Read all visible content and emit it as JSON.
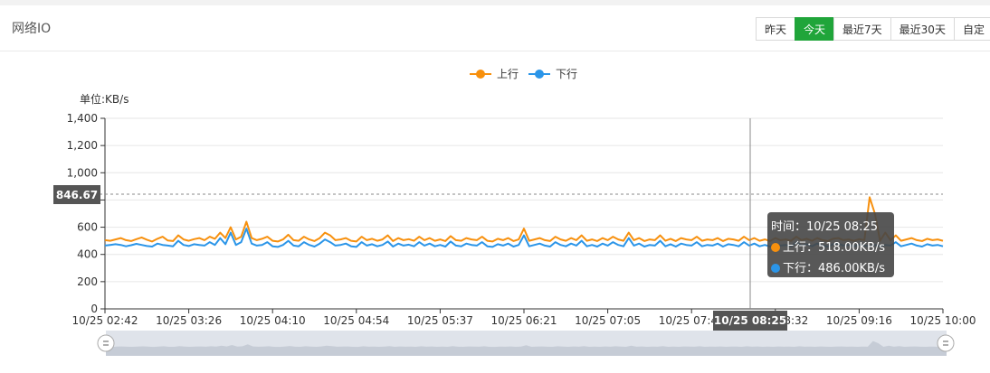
{
  "panel": {
    "title": "网络IO"
  },
  "range_buttons": [
    {
      "label": "昨天",
      "active": false
    },
    {
      "label": "今天",
      "active": true
    },
    {
      "label": "最近7天",
      "active": false
    },
    {
      "label": "最近30天",
      "active": false
    },
    {
      "label": "自定",
      "active": false
    }
  ],
  "colors": {
    "upload": "#f7900e",
    "download": "#2b95e8",
    "active_button": "#20a53a"
  },
  "chart_data": {
    "type": "line",
    "unit_label": "单位:KB/s",
    "legend_position": "top-center",
    "grid": true,
    "ylim": [
      0,
      1400
    ],
    "y_ticks": [
      "0",
      "200",
      "400",
      "600",
      "800",
      "1,000",
      "1,200",
      "1,400"
    ],
    "x_range": [
      "10/25 02:42",
      "10/25 10:00"
    ],
    "x_ticks": [
      "10/25 02:42",
      "10/25 03:26",
      "10/25 04:10",
      "10/25 04:54",
      "10/25 05:37",
      "10/25 06:21",
      "10/25 07:05",
      "10/25 07:49",
      "10/25 08:32",
      "10/25 09:16",
      "10/25 10:00"
    ],
    "series": [
      {
        "name": "上行",
        "color": "#f7900e",
        "values": [
          505,
          500,
          510,
          520,
          505,
          498,
          512,
          525,
          508,
          495,
          515,
          530,
          502,
          498,
          540,
          510,
          500,
          512,
          520,
          505,
          530,
          515,
          560,
          520,
          600,
          510,
          530,
          640,
          520,
          505,
          515,
          530,
          500,
          495,
          510,
          545,
          505,
          500,
          530,
          510,
          498,
          520,
          560,
          540,
          505,
          510,
          520,
          500,
          495,
          530,
          505,
          515,
          500,
          510,
          540,
          498,
          520,
          505,
          512,
          500,
          530,
          505,
          520,
          500,
          510,
          498,
          535,
          505,
          500,
          520,
          510,
          505,
          530,
          500,
          495,
          515,
          505,
          520,
          498,
          510,
          590,
          500,
          510,
          520,
          505,
          498,
          530,
          510,
          500,
          520,
          505,
          540,
          500,
          510,
          498,
          520,
          505,
          530,
          510,
          500,
          560,
          505,
          520,
          498,
          510,
          505,
          540,
          500,
          515,
          498,
          520,
          510,
          505,
          530,
          500,
          510,
          505,
          520,
          498,
          515,
          510,
          500,
          530,
          505,
          520,
          500,
          510,
          498,
          520,
          505,
          510,
          500,
          530,
          505,
          515,
          500,
          520,
          505,
          498,
          515,
          520,
          505,
          510,
          500,
          512,
          505,
          820,
          700,
          500,
          560,
          505,
          540,
          500,
          510,
          520,
          505,
          498,
          515,
          505,
          510,
          500
        ]
      },
      {
        "name": "下行",
        "color": "#2b95e8",
        "values": [
          465,
          470,
          475,
          470,
          460,
          468,
          478,
          470,
          462,
          458,
          480,
          470,
          465,
          460,
          500,
          470,
          462,
          475,
          470,
          465,
          490,
          470,
          520,
          475,
          560,
          470,
          490,
          590,
          480,
          465,
          470,
          490,
          460,
          455,
          470,
          500,
          465,
          460,
          490,
          470,
          458,
          480,
          510,
          490,
          465,
          470,
          480,
          460,
          455,
          490,
          465,
          475,
          460,
          470,
          495,
          458,
          480,
          465,
          472,
          460,
          490,
          465,
          480,
          460,
          470,
          458,
          495,
          465,
          460,
          480,
          470,
          465,
          490,
          460,
          455,
          475,
          465,
          480,
          458,
          470,
          540,
          460,
          470,
          480,
          465,
          458,
          490,
          470,
          460,
          480,
          465,
          500,
          460,
          470,
          458,
          480,
          465,
          490,
          470,
          460,
          520,
          465,
          480,
          458,
          470,
          465,
          500,
          460,
          475,
          458,
          480,
          470,
          465,
          490,
          460,
          470,
          465,
          480,
          458,
          475,
          470,
          460,
          490,
          465,
          480,
          460,
          470,
          458,
          480,
          465,
          470,
          460,
          490,
          465,
          475,
          460,
          480,
          465,
          458,
          475,
          480,
          465,
          470,
          460,
          472,
          465,
          460,
          470,
          460,
          470,
          465,
          490,
          460,
          470,
          480,
          465,
          458,
          475,
          465,
          470,
          460
        ]
      }
    ],
    "crosshair": {
      "x_label": "10/25 08:25",
      "y_label": "846.67"
    },
    "tooltip": {
      "time_line": "时间：10/25 08:25",
      "upload_line": "上行：518.00KB/s",
      "download_line": "下行：486.00KB/s"
    }
  }
}
